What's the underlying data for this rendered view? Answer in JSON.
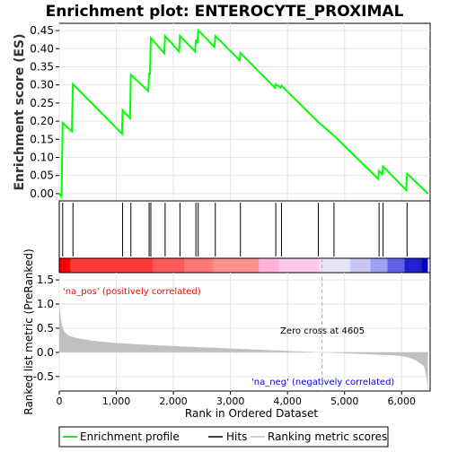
{
  "chart_data": {
    "type": "line",
    "title": "Enrichment plot: ENTEROCYTE_PROXIMAL",
    "xlabel": "Rank in Ordered Dataset",
    "ylabel_top": "Enrichment score (ES)",
    "ylabel_bottom": "Ranked list metric (PreRanked)",
    "xlim": [
      0,
      6500
    ],
    "ylim_top": [
      -0.02,
      0.47
    ],
    "ylim_bottom": [
      -0.8,
      1.65
    ],
    "x_ticks": [
      0,
      1000,
      2000,
      3000,
      4000,
      5000,
      6000
    ],
    "x_tick_labels": [
      "0",
      "1,000",
      "2,000",
      "3,000",
      "4,000",
      "5,000",
      "6,000"
    ],
    "y_ticks_top": [
      0.0,
      0.05,
      0.1,
      0.15,
      0.2,
      0.25,
      0.3,
      0.35,
      0.4,
      0.45
    ],
    "y_tick_labels_top": [
      "0.00",
      "0.05",
      "0.10",
      "0.15",
      "0.20",
      "0.25",
      "0.30",
      "0.35",
      "0.40",
      "0.45"
    ],
    "y_ticks_bottom": [
      -0.5,
      0.0,
      0.5,
      1.0,
      1.5
    ],
    "y_tick_labels_bottom": [
      "-0.5",
      "0.0",
      "0.5",
      "1.0",
      "1.5"
    ],
    "grid": true,
    "legend_placement": "bottom",
    "series": [
      {
        "name": "Enrichment profile",
        "color": "#00ff00",
        "x": [
          0,
          40,
          60,
          220,
          240,
          1100,
          1110,
          1240,
          1255,
          1560,
          1575,
          1590,
          1605,
          1840,
          1855,
          2100,
          2115,
          2380,
          2395,
          2420,
          2435,
          2720,
          2735,
          3160,
          3175,
          3780,
          3795,
          3880,
          3895,
          4540,
          4800,
          4815,
          5590,
          5605,
          5660,
          5675,
          6080,
          6095,
          6460
        ],
        "y": [
          0.0,
          -0.008,
          0.195,
          0.172,
          0.302,
          0.165,
          0.23,
          0.208,
          0.328,
          0.283,
          0.333,
          0.328,
          0.43,
          0.387,
          0.435,
          0.392,
          0.435,
          0.392,
          0.425,
          0.415,
          0.451,
          0.405,
          0.435,
          0.368,
          0.388,
          0.292,
          0.302,
          0.293,
          0.298,
          0.197,
          0.162,
          0.16,
          0.041,
          0.063,
          0.053,
          0.075,
          0.01,
          0.055,
          0.0
        ]
      }
    ],
    "hits": [
      60,
      240,
      1110,
      1255,
      1575,
      1605,
      1855,
      2115,
      2395,
      2435,
      2735,
      3175,
      3795,
      3895,
      4540,
      4815,
      5605,
      5675,
      6095
    ],
    "hits_legend_label": "Hits",
    "metric_legend_label": "Ranking metric scores",
    "metric_color": "#c0c0c0",
    "hit_color": "#000000",
    "zero_cross": 4605,
    "zero_cross_label": "Zero cross at 4605",
    "pos_label": "'na_pos' (positively correlated)",
    "neg_label": "'na_neg' (negatively correlated)",
    "pos_label_color": "#ff0000",
    "neg_label_color": "#0000ff",
    "heat_bar_colors": [
      "#ff0000",
      "#ff3a3a",
      "#ff5a5a",
      "#ff7878",
      "#ff9090",
      "#ffb4d8",
      "#ffc8e8",
      "#e8e4f8",
      "#c8c4f4",
      "#a0a0f0",
      "#6060e8",
      "#2020d0",
      "#0000c0"
    ],
    "heat_bar_breaks": [
      0,
      200,
      1650,
      2200,
      2700,
      3500,
      3850,
      4550,
      5100,
      5450,
      5750,
      6050,
      6350,
      6460
    ]
  }
}
